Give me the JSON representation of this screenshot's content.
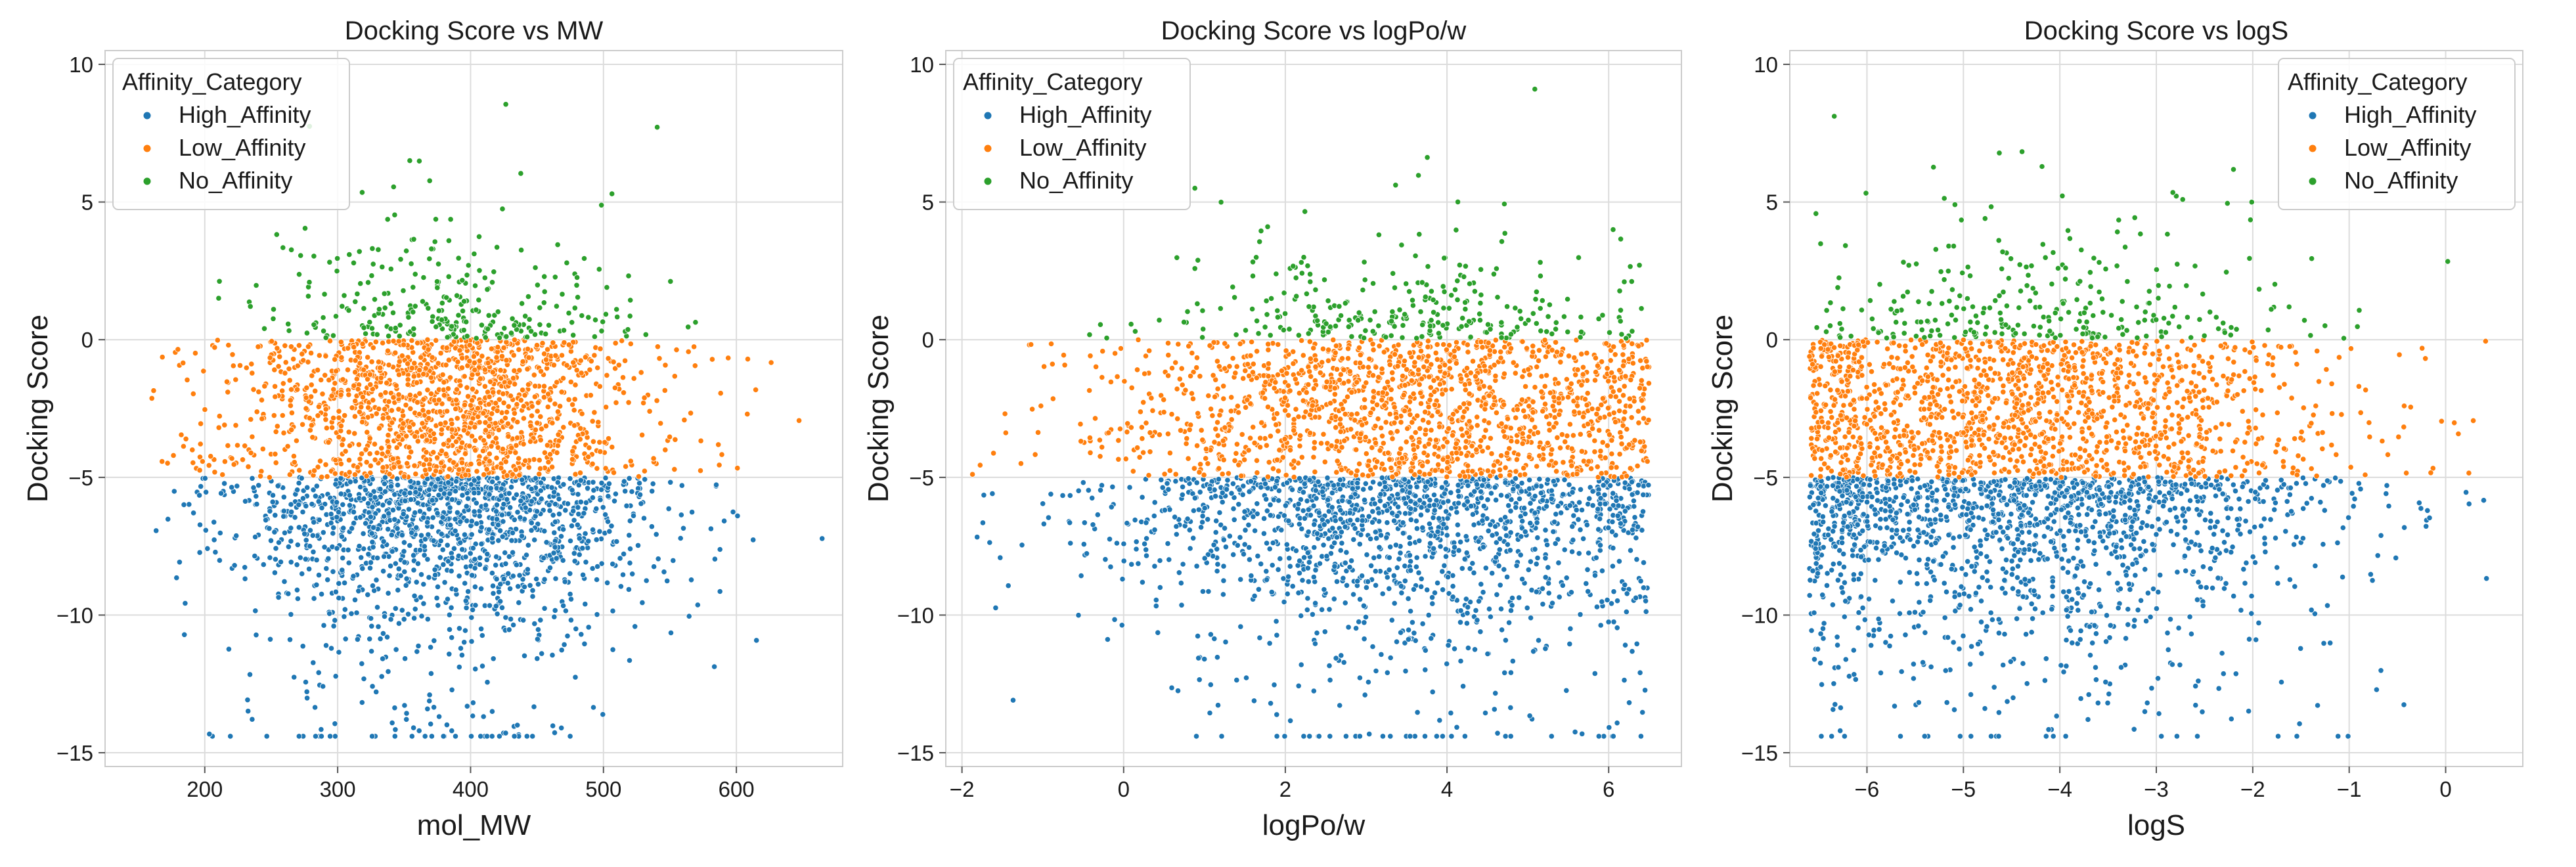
{
  "chart_data": [
    {
      "type": "scatter",
      "title": "Docking Score vs MW",
      "xlabel": "mol_MW",
      "ylabel": "Docking Score",
      "xlim": [
        125,
        680
      ],
      "ylim": [
        -15.5,
        10.5
      ],
      "xticks": [
        200,
        300,
        400,
        500,
        600
      ],
      "yticks": [
        10,
        5,
        0,
        -5,
        -10,
        -15
      ],
      "grid": true,
      "legend": {
        "title": "Affinity_Category",
        "placement": "top-left"
      },
      "distribution": {
        "center": 380,
        "spread": 70,
        "min": 160,
        "max": 665
      },
      "series": [
        {
          "name": "High_Affinity",
          "color": "#1f77b4",
          "y_range": [
            -14.5,
            -5
          ],
          "summary": "dense; mostly -5 to -10, sparse tail to about -14.5"
        },
        {
          "name": "Low_Affinity",
          "color": "#ff7f0e",
          "y_range": [
            -5,
            0
          ],
          "summary": "dense band between -5 and 0"
        },
        {
          "name": "No_Affinity",
          "color": "#2ca02c",
          "y_range": [
            0,
            9.2
          ],
          "summary": "sparse; mostly 0 to 4, outliers up to about 9.2"
        }
      ]
    },
    {
      "type": "scatter",
      "title": "Docking Score vs logPo/w",
      "xlabel": "logPo/w",
      "ylabel": "Docking Score",
      "xlim": [
        -2.2,
        6.9
      ],
      "ylim": [
        -15.5,
        10.5
      ],
      "xticks": [
        -2,
        0,
        2,
        4,
        6
      ],
      "yticks": [
        10,
        5,
        0,
        -5,
        -10,
        -15
      ],
      "grid": true,
      "legend": {
        "title": "Affinity_Category",
        "placement": "top-left"
      },
      "distribution": {
        "center": 3.5,
        "spread": 1.6,
        "min": -1.9,
        "max": 6.5
      },
      "series": [
        {
          "name": "High_Affinity",
          "color": "#1f77b4",
          "y_range": [
            -14.5,
            -5
          ],
          "summary": "dense; mostly -5 to -10, sparse tail to about -14.4"
        },
        {
          "name": "Low_Affinity",
          "color": "#ff7f0e",
          "y_range": [
            -5,
            0
          ],
          "summary": "dense band between -5 and 0"
        },
        {
          "name": "No_Affinity",
          "color": "#2ca02c",
          "y_range": [
            0,
            9.1
          ],
          "summary": "sparse; mostly 0 to 4, outliers up to about 9.1"
        }
      ]
    },
    {
      "type": "scatter",
      "title": "Docking Score vs logS",
      "xlabel": "logS",
      "ylabel": "Docking Score",
      "xlim": [
        -6.8,
        0.8
      ],
      "ylim": [
        -15.5,
        10.5
      ],
      "xticks": [
        -6,
        -5,
        -4,
        -3,
        -2,
        -1,
        0
      ],
      "yticks": [
        10,
        5,
        0,
        -5,
        -10,
        -15
      ],
      "grid": true,
      "legend": {
        "title": "Affinity_Category",
        "placement": "top-right"
      },
      "distribution": {
        "center": -4.4,
        "spread": 1.4,
        "min": -6.6,
        "max": 0.5
      },
      "series": [
        {
          "name": "High_Affinity",
          "color": "#1f77b4",
          "y_range": [
            -14.5,
            -5
          ],
          "summary": "dense; mostly -5 to -10, sparse tail to about -14.4"
        },
        {
          "name": "Low_Affinity",
          "color": "#ff7f0e",
          "y_range": [
            -5,
            0
          ],
          "summary": "dense band between -5 and 0"
        },
        {
          "name": "No_Affinity",
          "color": "#2ca02c",
          "y_range": [
            0,
            9.1
          ],
          "summary": "sparse; mostly 0 to 4, outliers up to about 9.1"
        }
      ]
    }
  ]
}
